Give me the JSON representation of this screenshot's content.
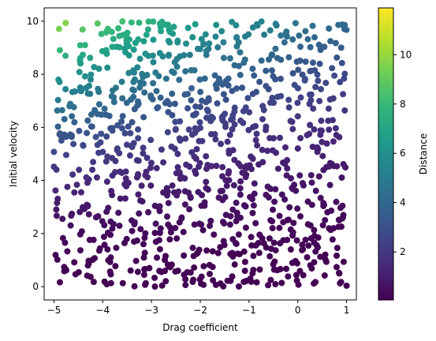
{
  "chart_data": {
    "type": "scatter",
    "title": "",
    "xlabel": "Drag coefficient",
    "ylabel": "Initial velocity",
    "xlim": [
      -5.2,
      1.2
    ],
    "ylim": [
      -0.5,
      10.5
    ],
    "xticks": [
      -5,
      -4,
      -3,
      -2,
      -1,
      0,
      1
    ],
    "yticks": [
      0,
      2,
      4,
      6,
      8,
      10
    ],
    "grid": false,
    "legend": "none",
    "point_count": 1000,
    "point_source": "sampled uniformly over the visible x/y ranges; colour = distance",
    "marker_color_encodes": "Distance",
    "colorbar": {
      "label": "Distance",
      "colormap": "viridis",
      "range": [
        0.05,
        11.9
      ],
      "ticks": [
        2,
        4,
        6,
        8,
        10
      ]
    },
    "colors": {
      "viridis_stops": [
        "#440154",
        "#482878",
        "#3e4989",
        "#31688e",
        "#26828e",
        "#1f9e89",
        "#35b779",
        "#6ece58",
        "#b5de2b",
        "#fde725"
      ]
    }
  }
}
